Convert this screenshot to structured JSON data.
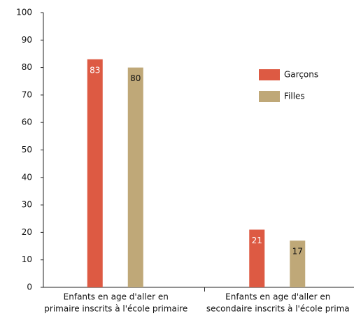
{
  "chart_data": {
    "type": "bar",
    "categories": [
      [
        "Enfants en age d'aller en",
        "primaire inscrits à l'école primaire"
      ],
      [
        "Enfants en age d'aller en",
        "secondaire inscrits à l'école prima"
      ]
    ],
    "series": [
      {
        "name": "Garçons",
        "color": "#dd5a43",
        "values": [
          83,
          21
        ]
      },
      {
        "name": "Filles",
        "color": "#bfa878",
        "values": [
          80,
          17
        ]
      }
    ],
    "ylim": [
      0,
      100
    ],
    "yticks": [
      0,
      10,
      20,
      30,
      40,
      50,
      60,
      70,
      80,
      90,
      100
    ],
    "legend": "right"
  }
}
